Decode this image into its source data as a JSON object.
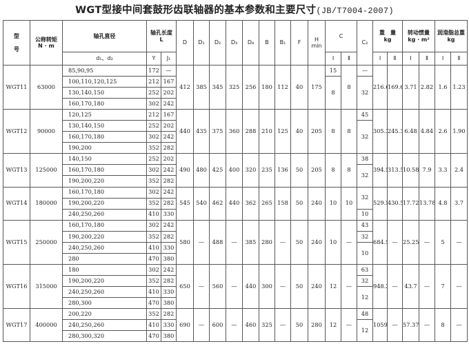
{
  "title": {
    "main": "WGT型接中间套鼓形齿联轴器的基本参数和主要尺寸",
    "standard": "(JB/T7004-2007)"
  },
  "header": {
    "model_top": "型",
    "model_bottom": "号",
    "torque": "公称转矩",
    "torque_unit": "N · m",
    "bore_diameter": "轴孔直径",
    "bore_sub": "d₁、d₂",
    "bore_length": "轴孔长度",
    "bore_length_unit": "L",
    "Y": "Y",
    "J1": "J₁",
    "dims": [
      "D",
      "D₁",
      "D₂",
      "D₃",
      "D₄",
      "B",
      "B₁",
      "F"
    ],
    "H": "H",
    "H_unit": "min",
    "C": "C",
    "C2": "C₂",
    "weight": "重　量",
    "weight_unit": "kg",
    "inertia": "转动惯量",
    "inertia_unit": "kg · m²",
    "grease": "润滑脂总重",
    "grease_unit": "kg",
    "I": "Ⅰ",
    "II": "Ⅱ"
  },
  "rows": [
    {
      "model": "WGT11",
      "torque": "63000",
      "bores": [
        [
          "85,90,95",
          "172",
          "—"
        ],
        [
          "100,110,120,125",
          "212",
          "167"
        ],
        [
          "130,140,150",
          "252",
          "202"
        ],
        [
          "160,170,180",
          "302",
          "242"
        ]
      ],
      "dims": [
        "412",
        "385",
        "345",
        "325",
        "256",
        "180",
        "112",
        "40",
        "175"
      ],
      "ci": [
        [
          "15",
          1
        ],
        [
          "8",
          3
        ]
      ],
      "cii": [
        [
          "8",
          4
        ]
      ],
      "c2": [
        [
          "—",
          1
        ],
        [
          "32",
          3
        ]
      ],
      "vals": [
        "216.6",
        "169.6",
        "3.71",
        "2.82",
        "1.6",
        "1.23"
      ]
    },
    {
      "model": "WGT12",
      "torque": "90000",
      "bores": [
        [
          "120,125",
          "212",
          "167"
        ],
        [
          "130,140,150",
          "252",
          "202"
        ],
        [
          "160,170,180",
          "302",
          "242"
        ],
        [
          "190,200",
          "352",
          "282"
        ]
      ],
      "dims": [
        "440",
        "435",
        "375",
        "360",
        "288",
        "210",
        "125",
        "40",
        "205"
      ],
      "ci": [
        [
          "8",
          4
        ]
      ],
      "cii": [
        [
          "8",
          4
        ]
      ],
      "c2": [
        [
          "45",
          1
        ],
        [
          "32",
          3
        ]
      ],
      "vals": [
        "305.3",
        "245.3",
        "6.48",
        "4.84",
        "2.6",
        "1.90"
      ]
    },
    {
      "model": "WGT13",
      "torque": "125000",
      "bores": [
        [
          "140,150",
          "252",
          "202"
        ],
        [
          "160,170,180",
          "302",
          "242"
        ],
        [
          "190,200,220",
          "352",
          "282"
        ]
      ],
      "dims": [
        "490",
        "480",
        "425",
        "400",
        "320",
        "235",
        "136",
        "50",
        "205"
      ],
      "ci": [
        [
          "8",
          3
        ]
      ],
      "cii": [
        [
          "8",
          3
        ]
      ],
      "c2": [
        [
          "38",
          1
        ],
        [
          "32",
          2
        ]
      ],
      "vals": [
        "394.5",
        "313.5",
        "10.58",
        "7.9",
        "3.3",
        "2.4"
      ]
    },
    {
      "model": "WGT14",
      "torque": "180000",
      "bores": [
        [
          "160,170,180",
          "302",
          "242"
        ],
        [
          "190,200,220",
          "352",
          "282"
        ],
        [
          "240,250,260",
          "410",
          "330"
        ]
      ],
      "dims": [
        "545",
        "540",
        "462",
        "440",
        "362",
        "265",
        "158",
        "50",
        "240"
      ],
      "ci": [
        [
          "10",
          3
        ]
      ],
      "cii": [
        [
          "10",
          3
        ]
      ],
      "c2": [
        [
          "32",
          2
        ],
        [
          "10",
          1
        ]
      ],
      "vals": [
        "529.5",
        "430.5",
        "17.72",
        "13.78",
        "4.8",
        "3.7"
      ]
    },
    {
      "model": "WGT15",
      "torque": "250000",
      "bores": [
        [
          "160,170,180",
          "302",
          "242"
        ],
        [
          "190,200,220",
          "352",
          "282"
        ],
        [
          "240,250,260",
          "410",
          "330"
        ],
        [
          "280",
          "470",
          "380"
        ]
      ],
      "dims": [
        "580",
        "—",
        "488",
        "—",
        "385",
        "280",
        "—",
        "50",
        "240"
      ],
      "ci": [
        [
          "10",
          4
        ]
      ],
      "cii": [
        [
          "—",
          4
        ]
      ],
      "c2": [
        [
          "43",
          1
        ],
        [
          "32",
          1
        ],
        [
          "10",
          2
        ]
      ],
      "vals": [
        "684.5",
        "—",
        "25.25",
        "—",
        "5",
        "—"
      ]
    },
    {
      "model": "WGT16",
      "torque": "315000",
      "bores": [
        [
          "180",
          "302",
          "242"
        ],
        [
          "190,200,220",
          "352",
          "282"
        ],
        [
          "240,250,260",
          "410",
          "330"
        ],
        [
          "280,300",
          "470",
          "380"
        ]
      ],
      "dims": [
        "650",
        "—",
        "560",
        "—",
        "440",
        "300",
        "—",
        "50",
        "240"
      ],
      "ci": [
        [
          "12",
          4
        ]
      ],
      "cii": [
        [
          "—",
          4
        ]
      ],
      "c2": [
        [
          "63",
          1
        ],
        [
          "32",
          1
        ],
        [
          "12",
          2
        ]
      ],
      "vals": [
        "948.2",
        "—",
        "43.7",
        "—",
        "7",
        "—"
      ]
    },
    {
      "model": "WGT17",
      "torque": "400000",
      "bores": [
        [
          "200,220",
          "352",
          "282"
        ],
        [
          "240,250,260",
          "410",
          "330"
        ],
        [
          "280,300,320",
          "470",
          "380"
        ]
      ],
      "dims": [
        "690",
        "—",
        "600",
        "—",
        "460",
        "325",
        "—",
        "50",
        "280"
      ],
      "ci": [
        [
          "12",
          3
        ]
      ],
      "cii": [
        [
          "—",
          3
        ]
      ],
      "c2": [
        [
          "48",
          1
        ],
        [
          "12",
          2
        ]
      ],
      "vals": [
        "1059",
        "—",
        "57.37",
        "—",
        "8",
        "—"
      ]
    }
  ]
}
